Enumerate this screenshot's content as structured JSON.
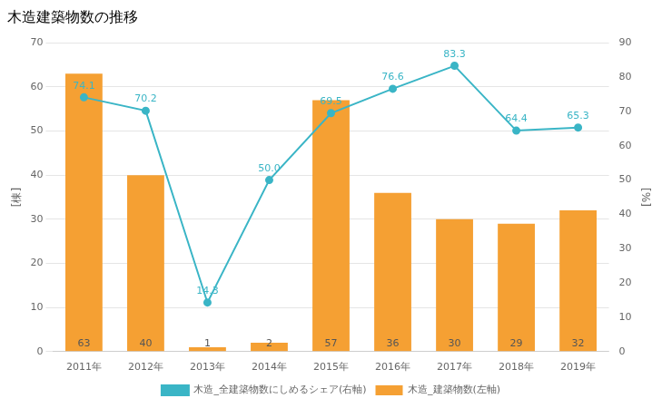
{
  "chart_data": {
    "type": "bar",
    "title": "木造建築物数の推移",
    "categories": [
      "2011年",
      "2012年",
      "2013年",
      "2014年",
      "2015年",
      "2016年",
      "2017年",
      "2018年",
      "2019年"
    ],
    "series": [
      {
        "name": "木造_建築物数(左軸)",
        "type": "bar",
        "color": "#f5a033",
        "values": [
          63,
          40,
          1,
          2,
          57,
          36,
          30,
          29,
          32
        ]
      },
      {
        "name": "木造_全建築物数にしめるシェア(右軸)",
        "type": "line",
        "color": "#3ab5c6",
        "marker": "circle",
        "axis": "y2",
        "values": [
          74.1,
          70.2,
          14.3,
          50.0,
          69.5,
          76.6,
          83.3,
          64.4,
          65.3
        ],
        "value_labels": [
          "74.1",
          "70.2",
          "14.3",
          "50.0",
          "69.5",
          "76.6",
          "83.3",
          "64.4",
          "65.3"
        ]
      }
    ],
    "ylabel": "[棟]",
    "y2label": "[%]",
    "ylim": [
      0,
      70
    ],
    "yticks": [
      0,
      10,
      20,
      30,
      40,
      50,
      60,
      70
    ],
    "y2lim": [
      0,
      90.0
    ],
    "y2ticks": [
      0,
      10,
      20,
      30,
      40,
      50,
      60,
      70,
      80,
      90
    ],
    "grid": true,
    "data_labels": true,
    "legend": "bottom"
  }
}
